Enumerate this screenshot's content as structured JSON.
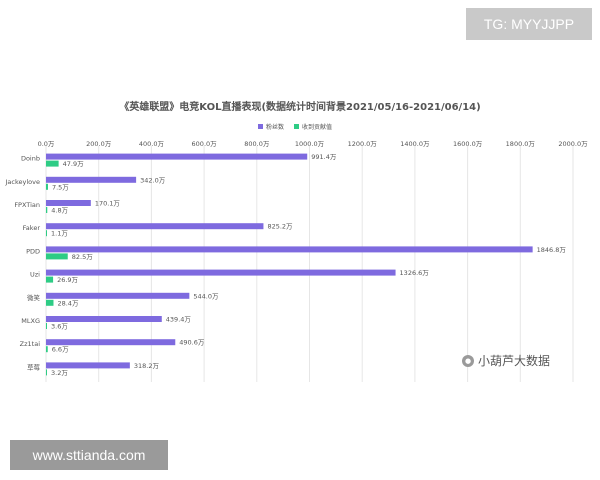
{
  "watermarks": {
    "top_right": "TG: MYYJJPP",
    "bottom_left": "www.sttianda.com"
  },
  "brand": {
    "text": "小葫芦大数据",
    "icon": "wechat-icon"
  },
  "colors": {
    "fans": "#7e6adf",
    "contribution": "#2ecc85",
    "grid": "#e6e6e6",
    "text": "#555555"
  },
  "chart_data": {
    "type": "bar",
    "orientation": "horizontal",
    "title": "《英雄联盟》电竞KOL直播表现(数据统计时间背景2021/05/16-2021/06/14)",
    "xlabel": "",
    "ylabel": "",
    "xlim": [
      0,
      2000
    ],
    "xticks": [
      "0.0万",
      "200.0万",
      "400.0万",
      "600.0万",
      "800.0万",
      "1000.0万",
      "1200.0万",
      "1400.0万",
      "1600.0万",
      "1800.0万",
      "2000.0万"
    ],
    "grid": true,
    "legend_position": "top",
    "categories": [
      "Doinb",
      "Jackeylove",
      "FPXTian",
      "Faker",
      "PDD",
      "Uzi",
      "微笑",
      "MLXG",
      "Zz1tai",
      "草莓"
    ],
    "series": [
      {
        "name": "粉丝数",
        "values": [
          991.4,
          342.0,
          170.1,
          825.2,
          1846.8,
          1326.6,
          544.0,
          439.4,
          490.6,
          318.2
        ],
        "labels": [
          "991.4万",
          "342.0万",
          "170.1万",
          "825.2万",
          "1846.8万",
          "1326.6万",
          "544.0万",
          "439.4万",
          "490.6万",
          "318.2万"
        ]
      },
      {
        "name": "收到贡献值",
        "values": [
          47.9,
          7.5,
          4.8,
          1.1,
          82.5,
          26.9,
          28.4,
          3.6,
          6.6,
          3.2
        ],
        "labels": [
          "47.9万",
          "7.5万",
          "4.8万",
          "1.1万",
          "82.5万",
          "26.9万",
          "28.4万",
          "3.6万",
          "6.6万",
          "3.2万"
        ]
      }
    ]
  }
}
